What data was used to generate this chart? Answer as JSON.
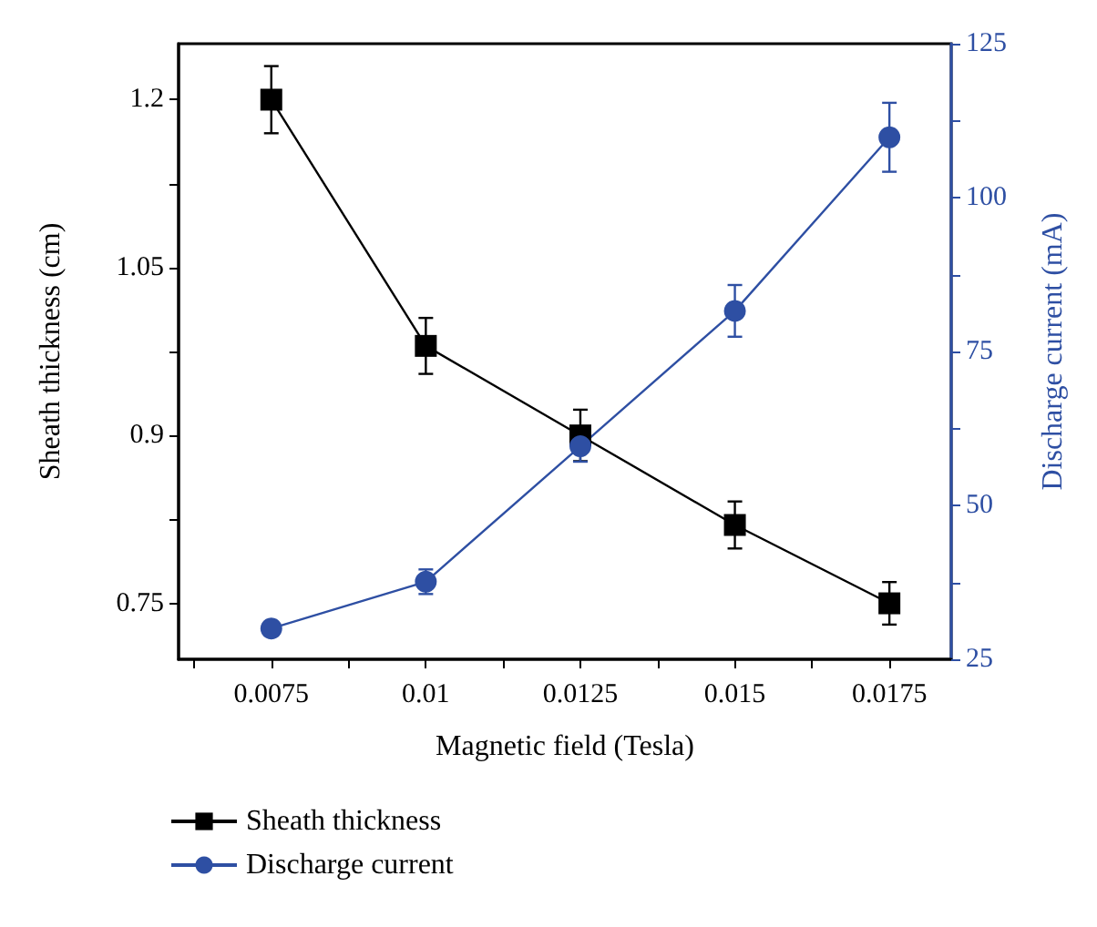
{
  "chart_data": {
    "type": "line",
    "xlabel": "Magnetic field (Tesla)",
    "ylabel": "Sheath thickness (cm)",
    "y2label": "Discharge current (mA)",
    "x": [
      0.0075,
      0.01,
      0.0125,
      0.015,
      0.0175
    ],
    "xlim": [
      0.006,
      0.0185
    ],
    "xticks": [
      0.0075,
      0.01,
      0.0125,
      0.015,
      0.0175
    ],
    "ylim": [
      0.7,
      1.25
    ],
    "yticks": [
      0.75,
      0.9,
      1.05,
      1.2
    ],
    "y2lim": [
      25,
      125
    ],
    "y2ticks": [
      25,
      50,
      75,
      100,
      125
    ],
    "series": [
      {
        "name": "Sheath thickness",
        "color": "#000000",
        "marker": "square",
        "values": [
          1.2,
          0.98,
          0.9,
          0.82,
          0.75
        ],
        "errors": [
          0.03,
          0.025,
          0.023,
          0.021,
          0.019
        ]
      },
      {
        "name": "Discharge current",
        "color": "#2e4fa3",
        "marker": "circle",
        "axis": "y2",
        "values": [
          30,
          37.6,
          59.6,
          81.6,
          109.8
        ],
        "errors": [
          1,
          2,
          2.5,
          4.2,
          5.6
        ]
      }
    ],
    "legend": "bottom",
    "grid": false,
    "line_style": "solid"
  }
}
